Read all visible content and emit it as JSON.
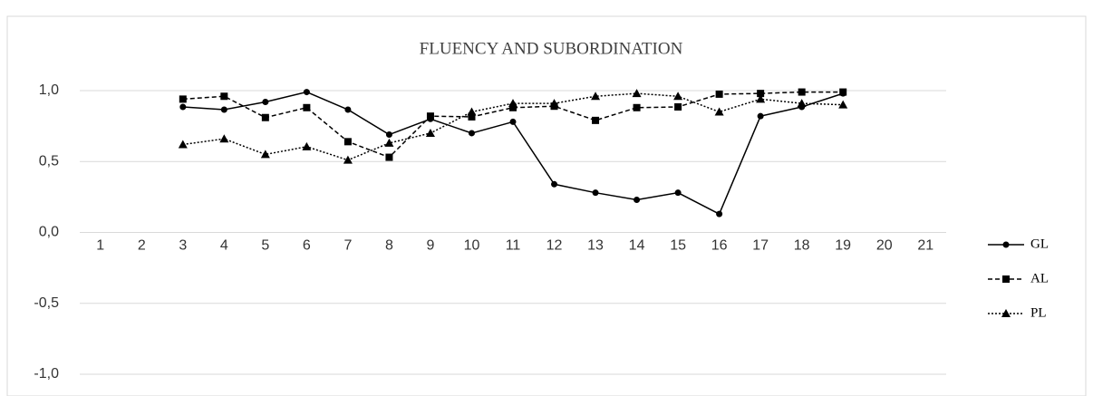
{
  "chart_data": {
    "type": "line",
    "title": "FLUENCY AND SUBORDINATION",
    "categories": [
      "1",
      "2",
      "3",
      "4",
      "5",
      "6",
      "7",
      "8",
      "9",
      "10",
      "11",
      "12",
      "13",
      "14",
      "15",
      "16",
      "17",
      "18",
      "19",
      "20",
      "21"
    ],
    "series": [
      {
        "name": "GL",
        "color": "#000000",
        "dash": "solid",
        "marker": "circle",
        "values": [
          null,
          null,
          0.885,
          0.866,
          0.92,
          0.99,
          0.866,
          0.69,
          0.8,
          0.7,
          0.78,
          0.34,
          0.28,
          0.23,
          0.28,
          0.13,
          0.82,
          0.885,
          0.98,
          null,
          null
        ]
      },
      {
        "name": "AL",
        "color": "#000000",
        "dash": "dashed",
        "marker": "square",
        "values": [
          null,
          null,
          0.94,
          0.96,
          0.81,
          0.88,
          0.64,
          0.53,
          0.82,
          0.815,
          0.88,
          0.89,
          0.79,
          0.88,
          0.885,
          0.975,
          0.98,
          0.99,
          0.99,
          null,
          null
        ]
      },
      {
        "name": "PL",
        "color": "#000000",
        "dash": "dotted",
        "marker": "triangle",
        "values": [
          null,
          null,
          0.62,
          0.66,
          0.55,
          0.605,
          0.51,
          0.63,
          0.7,
          0.85,
          0.91,
          0.91,
          0.96,
          0.98,
          0.96,
          0.85,
          0.94,
          0.91,
          0.9,
          null,
          null
        ]
      }
    ],
    "ylim": [
      -1,
      1
    ],
    "yticks": [
      {
        "value": -1,
        "label": "-1,0"
      },
      {
        "value": -0.5,
        "label": "-0,5"
      },
      {
        "value": 0,
        "label": "0,0"
      },
      {
        "value": 0.5,
        "label": "0,5"
      },
      {
        "value": 1,
        "label": "1,0"
      }
    ],
    "grid": true,
    "legend": "right"
  }
}
